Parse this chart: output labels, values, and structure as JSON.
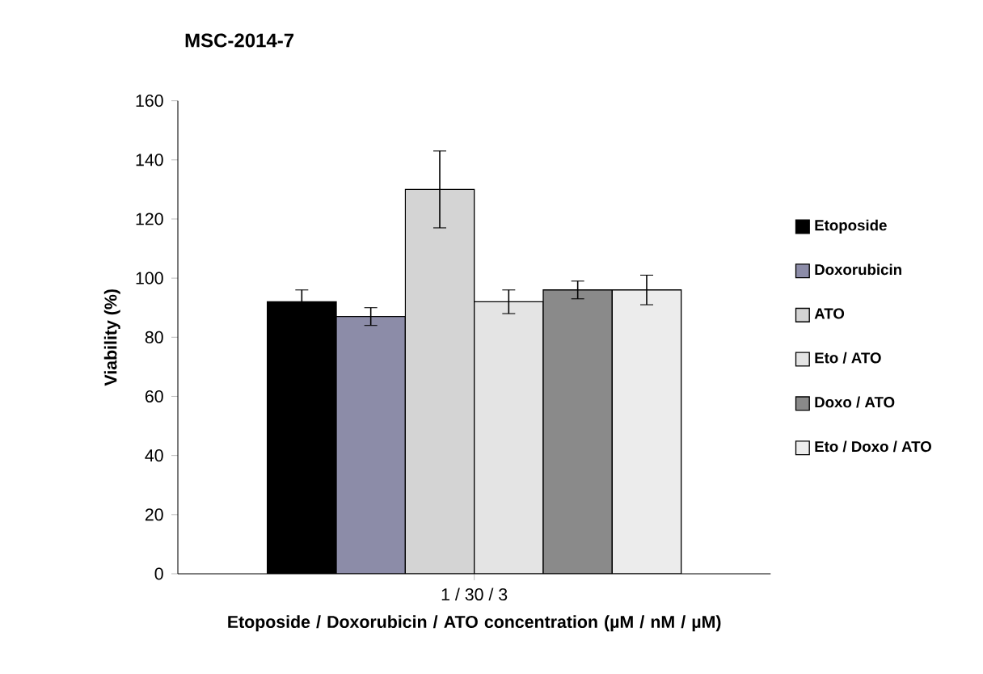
{
  "chart_data": {
    "type": "bar",
    "title": "MSC-2014-7",
    "xlabel": "Etoposide / Doxorubicin / ATO concentration (µM / nM / µM)",
    "ylabel": "Viability (%)",
    "categories": [
      "1 / 30 / 3"
    ],
    "series": [
      {
        "name": "Etoposide",
        "color": "#000000",
        "values": [
          92
        ],
        "errors": [
          4
        ]
      },
      {
        "name": "Doxorubicin",
        "color": "#8c8ca8",
        "values": [
          87
        ],
        "errors": [
          3
        ]
      },
      {
        "name": "ATO",
        "color": "#d4d4d4",
        "values": [
          130
        ],
        "errors": [
          13
        ]
      },
      {
        "name": "Eto / ATO",
        "color": "#e4e4e4",
        "values": [
          92
        ],
        "errors": [
          4
        ]
      },
      {
        "name": "Doxo / ATO",
        "color": "#8a8a8a",
        "values": [
          96
        ],
        "errors": [
          3
        ]
      },
      {
        "name": "Eto / Doxo / ATO",
        "color": "#ececec",
        "values": [
          96
        ],
        "errors": [
          5
        ]
      }
    ],
    "ylim": [
      0,
      160
    ],
    "yticks": [
      0,
      20,
      40,
      60,
      80,
      100,
      120,
      140,
      160
    ],
    "legend": "right",
    "grid": false
  }
}
